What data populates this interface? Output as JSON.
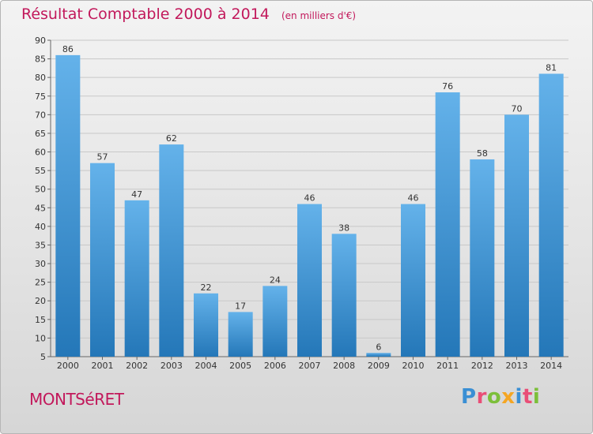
{
  "title": "Résultat Comptable 2000 à 2014",
  "subtitle": "(en milliers d'€)",
  "commune": "MONTSéRET",
  "brand": {
    "letters": [
      {
        "char": "P",
        "color": "#3a8fd4"
      },
      {
        "char": "r",
        "color": "#e94e77"
      },
      {
        "char": "o",
        "color": "#7cbf3a"
      },
      {
        "char": "x",
        "color": "#f5a623"
      },
      {
        "char": "i",
        "color": "#3a8fd4"
      },
      {
        "char": "t",
        "color": "#e94e77"
      },
      {
        "char": "i",
        "color": "#7cbf3a"
      }
    ]
  },
  "colors": {
    "title": "#c2185b",
    "bar_top": "#64b2ea",
    "bar_bottom": "#2477b8",
    "grid": "#c8c8c8"
  },
  "chart_data": {
    "type": "bar",
    "categories": [
      "2000",
      "2001",
      "2002",
      "2003",
      "2004",
      "2005",
      "2006",
      "2007",
      "2008",
      "2009",
      "2010",
      "2011",
      "2012",
      "2013",
      "2014"
    ],
    "values": [
      86,
      57,
      47,
      62,
      22,
      17,
      24,
      46,
      38,
      6,
      46,
      76,
      58,
      70,
      81
    ],
    "ylim": [
      5,
      90
    ],
    "yticks": [
      5,
      10,
      15,
      20,
      25,
      30,
      35,
      40,
      45,
      50,
      55,
      60,
      65,
      70,
      75,
      80,
      85,
      90
    ],
    "grid": true,
    "title": "Résultat Comptable 2000 à 2014",
    "xlabel": "",
    "ylabel": ""
  }
}
